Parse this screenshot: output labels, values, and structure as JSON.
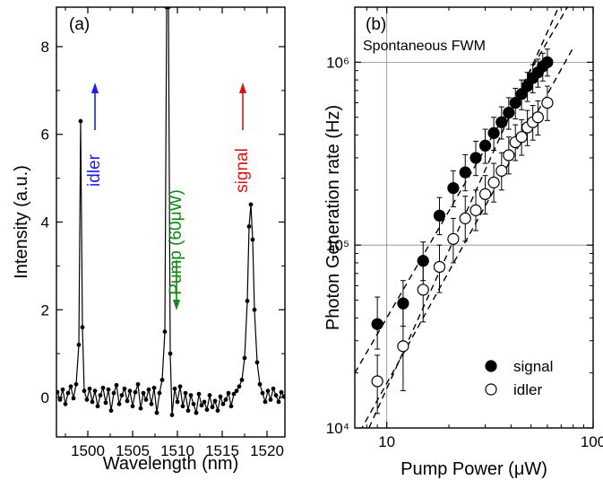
{
  "chart_data": [
    {
      "panel_label": "(a)",
      "type": "line",
      "xlabel": "Wavelength (nm)",
      "ylabel": "Intensity (a.u.)",
      "xlim": [
        1496.5,
        1522
      ],
      "ylim": [
        -0.9,
        8.9
      ],
      "x_ticks": [
        1500,
        1505,
        1510,
        1515,
        1520
      ],
      "y_ticks": [
        0,
        2,
        4,
        6,
        8
      ],
      "series": [
        {
          "type": "line_with_markers",
          "color": "#000000",
          "noise_points": [
            [
              1496.6,
              0.12
            ],
            [
              1496.9,
              -0.05
            ],
            [
              1497.2,
              0.18
            ],
            [
              1497.5,
              -0.15
            ],
            [
              1497.8,
              0.1
            ],
            [
              1498.1,
              0.25
            ],
            [
              1498.4,
              -0.02
            ],
            [
              1498.7,
              0.3
            ],
            [
              1499.0,
              1.2
            ],
            [
              1499.2,
              6.3
            ],
            [
              1499.4,
              1.6
            ],
            [
              1499.6,
              0.15
            ],
            [
              1499.9,
              -0.05
            ],
            [
              1500.2,
              0.2
            ],
            [
              1500.5,
              -0.1
            ],
            [
              1500.8,
              0.15
            ],
            [
              1501.1,
              -0.2
            ],
            [
              1501.4,
              0.05
            ],
            [
              1501.7,
              0.22
            ],
            [
              1502.0,
              -0.12
            ],
            [
              1502.3,
              0.18
            ],
            [
              1502.6,
              -0.3
            ],
            [
              1502.9,
              0.1
            ],
            [
              1503.2,
              0.28
            ],
            [
              1503.5,
              -0.15
            ],
            [
              1503.8,
              0.05
            ],
            [
              1504.1,
              0.2
            ],
            [
              1504.4,
              -0.08
            ],
            [
              1504.7,
              0.15
            ],
            [
              1505.0,
              -0.2
            ],
            [
              1505.3,
              0.12
            ],
            [
              1505.6,
              0.3
            ],
            [
              1505.9,
              -0.25
            ],
            [
              1506.2,
              0.1
            ],
            [
              1506.5,
              -0.05
            ],
            [
              1506.8,
              0.18
            ],
            [
              1507.1,
              -0.15
            ],
            [
              1507.4,
              0.22
            ],
            [
              1507.7,
              -0.35
            ],
            [
              1508.0,
              0.1
            ],
            [
              1508.3,
              0.4
            ],
            [
              1508.6,
              1.5
            ],
            [
              1508.8,
              8.9
            ],
            [
              1509.0,
              8.9
            ],
            [
              1509.2,
              1.0
            ],
            [
              1509.4,
              -0.4
            ],
            [
              1509.7,
              0.2
            ],
            [
              1510.0,
              -0.1
            ],
            [
              1510.3,
              0.25
            ],
            [
              1510.6,
              -0.2
            ],
            [
              1510.9,
              0.1
            ],
            [
              1511.2,
              -0.3
            ],
            [
              1511.5,
              0.05
            ],
            [
              1511.8,
              -0.15
            ],
            [
              1512.1,
              -0.35
            ],
            [
              1512.4,
              0.08
            ],
            [
              1512.7,
              -0.18
            ],
            [
              1513.0,
              -0.1
            ],
            [
              1513.3,
              -0.28
            ],
            [
              1513.6,
              0.05
            ],
            [
              1513.9,
              -0.22
            ],
            [
              1514.2,
              -0.08
            ],
            [
              1514.5,
              -0.3
            ],
            [
              1514.8,
              0.02
            ],
            [
              1515.1,
              -0.15
            ],
            [
              1515.4,
              -0.05
            ],
            [
              1515.7,
              0.1
            ],
            [
              1516.0,
              -0.2
            ],
            [
              1516.3,
              0.08
            ],
            [
              1516.6,
              0.15
            ],
            [
              1516.9,
              0.25
            ],
            [
              1517.2,
              0.4
            ],
            [
              1517.5,
              0.9
            ],
            [
              1517.8,
              2.2
            ],
            [
              1518.0,
              3.9
            ],
            [
              1518.2,
              4.4
            ],
            [
              1518.4,
              3.6
            ],
            [
              1518.6,
              2.0
            ],
            [
              1518.9,
              0.8
            ],
            [
              1519.2,
              0.3
            ],
            [
              1519.5,
              0.1
            ],
            [
              1519.8,
              -0.1
            ],
            [
              1520.1,
              0.15
            ],
            [
              1520.4,
              -0.05
            ],
            [
              1520.7,
              0.2
            ],
            [
              1521.0,
              0.05
            ],
            [
              1521.3,
              -0.1
            ],
            [
              1521.6,
              0.12
            ],
            [
              1521.9,
              0.02
            ]
          ]
        }
      ],
      "annotations": [
        {
          "text": "idler",
          "color": "#1a1aff",
          "x": 1500.8,
          "arrow": "up",
          "rotate": -90
        },
        {
          "text": "Pump (60μW)",
          "color": "#118811",
          "x": 1509.9,
          "arrow": "down",
          "rotate": -90
        },
        {
          "text": "signal",
          "color": "#e01010",
          "x": 1517.3,
          "arrow": "up",
          "rotate": -90
        }
      ]
    },
    {
      "panel_label": "(b)",
      "type": "scatter",
      "xlabel": "Pump Power (μW)",
      "ylabel": "Photon Generation rate (Hz)",
      "xscale": "log",
      "yscale": "log",
      "xlim": [
        7,
        100
      ],
      "ylim": [
        10000,
        2000000
      ],
      "x_tick_labels": [
        "10",
        "100"
      ],
      "y_tick_labels": [
        "10⁴",
        "10⁵",
        "10⁶"
      ],
      "annotation": "Spontaneous FWM",
      "legend": {
        "position": "bottom-right",
        "entries": [
          "signal",
          "idler"
        ]
      },
      "series": [
        {
          "name": "signal",
          "marker": "filled-circle",
          "points": [
            {
              "x": 9,
              "y": 37000,
              "xerr": 0.4,
              "ylo": 27000,
              "yhi": 52000
            },
            {
              "x": 12,
              "y": 48000,
              "xerr": 0.5,
              "ylo": 36000,
              "yhi": 64000
            },
            {
              "x": 15,
              "y": 82000,
              "xerr": 0.6,
              "ylo": 64000,
              "yhi": 104000
            },
            {
              "x": 18,
              "y": 145000,
              "xerr": 0.7,
              "ylo": 114000,
              "yhi": 182000
            },
            {
              "x": 21,
              "y": 205000,
              "xerr": 0.8,
              "ylo": 162000,
              "yhi": 255000
            },
            {
              "x": 24,
              "y": 250000,
              "xerr": 0.9,
              "ylo": 198000,
              "yhi": 312000
            },
            {
              "x": 27,
              "y": 300000,
              "xerr": 1.0,
              "ylo": 240000,
              "yhi": 370000
            },
            {
              "x": 30,
              "y": 350000,
              "xerr": 1.1,
              "ylo": 280000,
              "yhi": 430000
            },
            {
              "x": 33,
              "y": 410000,
              "xerr": 1.2,
              "ylo": 330000,
              "yhi": 500000
            },
            {
              "x": 36,
              "y": 470000,
              "xerr": 1.3,
              "ylo": 380000,
              "yhi": 570000
            },
            {
              "x": 39,
              "y": 530000,
              "xerr": 1.4,
              "ylo": 430000,
              "yhi": 640000
            },
            {
              "x": 42,
              "y": 600000,
              "xerr": 1.5,
              "ylo": 490000,
              "yhi": 720000
            },
            {
              "x": 45,
              "y": 670000,
              "xerr": 1.6,
              "ylo": 550000,
              "yhi": 800000
            },
            {
              "x": 48,
              "y": 740000,
              "xerr": 1.7,
              "ylo": 610000,
              "yhi": 880000
            },
            {
              "x": 51,
              "y": 820000,
              "xerr": 1.8,
              "ylo": 680000,
              "yhi": 970000
            },
            {
              "x": 54,
              "y": 880000,
              "xerr": 1.9,
              "ylo": 730000,
              "yhi": 1040000
            },
            {
              "x": 57,
              "y": 950000,
              "xerr": 2.0,
              "ylo": 790000,
              "yhi": 1120000
            },
            {
              "x": 60,
              "y": 1000000,
              "xerr": 2.1,
              "ylo": 840000,
              "yhi": 1180000
            }
          ]
        },
        {
          "name": "idler",
          "marker": "open-circle",
          "points": [
            {
              "x": 9,
              "y": 18000,
              "xerr": 0.4,
              "ylo": 12000,
              "yhi": 25000
            },
            {
              "x": 12,
              "y": 28000,
              "xerr": 0.5,
              "ylo": 16000,
              "yhi": 45000
            },
            {
              "x": 15,
              "y": 57000,
              "xerr": 0.6,
              "ylo": 38000,
              "yhi": 80000
            },
            {
              "x": 18,
              "y": 76000,
              "xerr": 0.7,
              "ylo": 55000,
              "yhi": 100000
            },
            {
              "x": 21,
              "y": 108000,
              "xerr": 0.8,
              "ylo": 80000,
              "yhi": 140000
            },
            {
              "x": 24,
              "y": 140000,
              "xerr": 0.9,
              "ylo": 105000,
              "yhi": 185000
            },
            {
              "x": 27,
              "y": 155000,
              "xerr": 1.0,
              "ylo": 120000,
              "yhi": 200000
            },
            {
              "x": 30,
              "y": 190000,
              "xerr": 1.1,
              "ylo": 148000,
              "yhi": 240000
            },
            {
              "x": 33,
              "y": 220000,
              "xerr": 1.2,
              "ylo": 172000,
              "yhi": 280000
            },
            {
              "x": 36,
              "y": 255000,
              "xerr": 1.3,
              "ylo": 200000,
              "yhi": 320000
            },
            {
              "x": 39,
              "y": 310000,
              "xerr": 1.4,
              "ylo": 245000,
              "yhi": 390000
            },
            {
              "x": 42,
              "y": 365000,
              "xerr": 1.5,
              "ylo": 290000,
              "yhi": 455000
            },
            {
              "x": 45,
              "y": 390000,
              "xerr": 1.6,
              "ylo": 310000,
              "yhi": 485000
            },
            {
              "x": 48,
              "y": 440000,
              "xerr": 1.7,
              "ylo": 350000,
              "yhi": 545000
            },
            {
              "x": 51,
              "y": 470000,
              "xerr": 1.8,
              "ylo": 375000,
              "yhi": 580000
            },
            {
              "x": 54,
              "y": 500000,
              "xerr": 1.9,
              "ylo": 400000,
              "yhi": 615000
            },
            {
              "x": 60,
              "y": 600000,
              "xerr": 2.1,
              "ylo": 480000,
              "yhi": 740000
            }
          ]
        }
      ],
      "fit_lines": [
        {
          "style": "dashed",
          "x": [
            7,
            75
          ],
          "y": [
            20000,
            2000000
          ]
        },
        {
          "style": "dashed",
          "x": [
            7,
            80
          ],
          "y": [
            8500,
            1200000
          ]
        },
        {
          "style": "dashed",
          "x": [
            8.2,
            68
          ],
          "y": [
            10000,
            2000000
          ]
        }
      ],
      "grid_lines": {
        "x": [
          10
        ],
        "y": [
          100000,
          1000000
        ]
      }
    }
  ]
}
